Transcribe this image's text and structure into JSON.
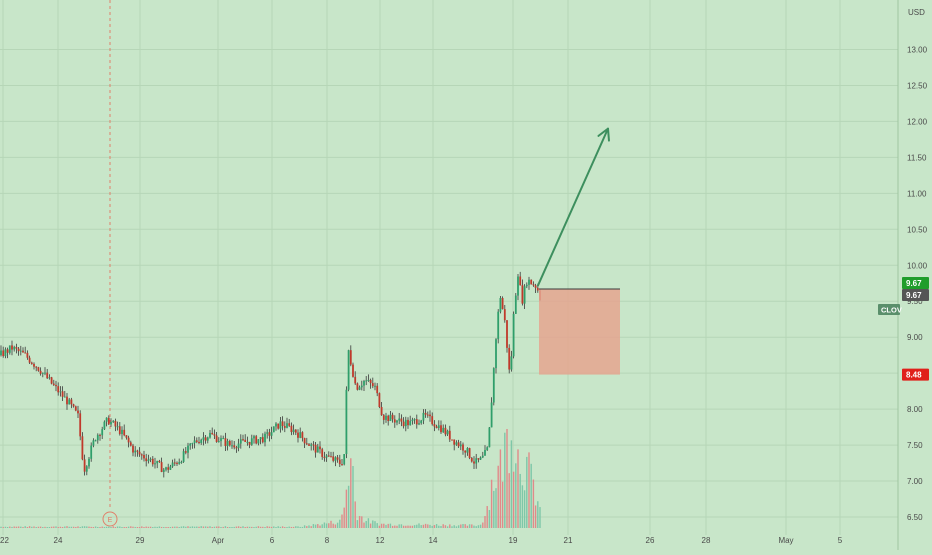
{
  "colors": {
    "background": "#c8e6c9",
    "grid": "#b6d6b7",
    "axis_text": "#4a4a4a",
    "up": "#2f9e6a",
    "down": "#c0392b",
    "wick": "#3a3a3a",
    "volume_up": "#7ec7a8",
    "volume_down": "#e08a8a",
    "arrow": "#3d8f5e",
    "zone_fill": "#e5a58f",
    "zone_edge": "#3a3a3a",
    "badge_green": "#1f9d2b",
    "badge_dark": "#555555",
    "badge_clov": "#5a8f6b",
    "badge_red": "#e0201b",
    "earnings": "#e0806a"
  },
  "chart_data": {
    "type": "candlestick",
    "symbol": "CLOV",
    "currency": "USD",
    "y_axis": {
      "ticks": [
        "13.00",
        "12.50",
        "12.00",
        "11.50",
        "11.00",
        "10.50",
        "10.00",
        "9.50",
        "9.00",
        "8.50",
        "8.00",
        "7.50",
        "7.00",
        "6.50"
      ],
      "ylim": [
        6.35,
        13.5
      ]
    },
    "x_axis": {
      "ticks": [
        "22",
        "24",
        "29",
        "Apr",
        "6",
        "8",
        "12",
        "14",
        "19",
        "21",
        "26",
        "28",
        "May",
        "5"
      ]
    },
    "price_labels": {
      "last": "9.67",
      "last2": "9.67",
      "symbol_tag": "CLOV",
      "stop": "8.48"
    },
    "annotations": {
      "earnings_marker": "E",
      "target_arrow": {
        "from": {
          "date": "Apr 19",
          "price": 9.72
        },
        "to": {
          "date": "Apr 21",
          "price": 11.9
        }
      },
      "risk_zone": {
        "top": 9.67,
        "bottom": 8.48,
        "from": "Apr 19",
        "to": "Apr 23"
      }
    },
    "anchors": [
      [
        0,
        8.75
      ],
      [
        12,
        8.85
      ],
      [
        25,
        8.75
      ],
      [
        40,
        8.55
      ],
      [
        55,
        8.3
      ],
      [
        68,
        8.1
      ],
      [
        78,
        7.9
      ],
      [
        84,
        7.15
      ],
      [
        95,
        7.6
      ],
      [
        108,
        7.85
      ],
      [
        120,
        7.7
      ],
      [
        135,
        7.4
      ],
      [
        150,
        7.3
      ],
      [
        165,
        7.15
      ],
      [
        180,
        7.3
      ],
      [
        195,
        7.55
      ],
      [
        210,
        7.65
      ],
      [
        230,
        7.5
      ],
      [
        248,
        7.55
      ],
      [
        265,
        7.6
      ],
      [
        280,
        7.8
      ],
      [
        295,
        7.7
      ],
      [
        310,
        7.5
      ],
      [
        325,
        7.35
      ],
      [
        340,
        7.25
      ],
      [
        344,
        7.3
      ],
      [
        348,
        8.85
      ],
      [
        356,
        8.3
      ],
      [
        365,
        8.4
      ],
      [
        375,
        8.3
      ],
      [
        383,
        7.9
      ],
      [
        395,
        7.85
      ],
      [
        410,
        7.8
      ],
      [
        425,
        7.9
      ],
      [
        440,
        7.75
      ],
      [
        455,
        7.55
      ],
      [
        465,
        7.45
      ],
      [
        475,
        7.25
      ],
      [
        482,
        7.3
      ],
      [
        488,
        7.45
      ],
      [
        492,
        8.2
      ],
      [
        496,
        9.0
      ],
      [
        500,
        9.6
      ],
      [
        505,
        9.2
      ],
      [
        510,
        8.4
      ],
      [
        514,
        9.4
      ],
      [
        518,
        9.9
      ],
      [
        522,
        9.5
      ],
      [
        527,
        9.8
      ],
      [
        532,
        9.75
      ],
      [
        537,
        9.7
      ],
      [
        540,
        9.55
      ]
    ],
    "volume_anchors": [
      [
        0,
        0.01
      ],
      [
        300,
        0.01
      ],
      [
        340,
        0.05
      ],
      [
        344,
        0.15
      ],
      [
        348,
        0.4
      ],
      [
        352,
        0.55
      ],
      [
        356,
        0.12
      ],
      [
        365,
        0.06
      ],
      [
        380,
        0.03
      ],
      [
        480,
        0.02
      ],
      [
        486,
        0.12
      ],
      [
        492,
        0.35
      ],
      [
        500,
        0.45
      ],
      [
        508,
        0.7
      ],
      [
        512,
        0.85
      ],
      [
        518,
        0.55
      ],
      [
        525,
        0.5
      ],
      [
        532,
        0.35
      ],
      [
        540,
        0.15
      ]
    ]
  }
}
